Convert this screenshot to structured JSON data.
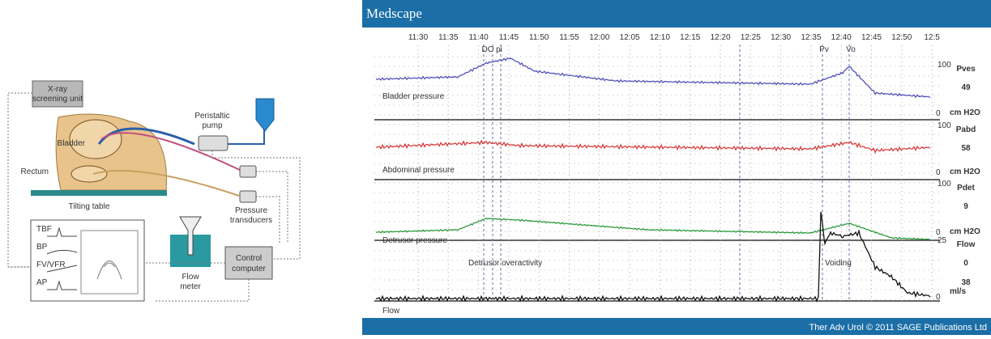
{
  "diagram": {
    "xray": [
      "X-ray",
      "screening unit"
    ],
    "pump": [
      "Peristaltic",
      "pump"
    ],
    "bladder": "Bladder",
    "rectum": "Rectum",
    "table": "Tilting table",
    "transducers": [
      "Pressure",
      "transducers"
    ],
    "flow_meter": [
      "Flow",
      "meter"
    ],
    "computer": [
      "Control",
      "computer"
    ],
    "monitor": [
      "TBF",
      "BP",
      "FV/VFR",
      "AP"
    ]
  },
  "trace": {
    "header": "Medscape",
    "times": [
      "11:30",
      "11:35",
      "11:40",
      "11:45",
      "11:50",
      "11:55",
      "12:00",
      "12:05",
      "12:10",
      "12:15",
      "12:20",
      "12:25",
      "12:30",
      "12:35",
      "12:40",
      "12:45",
      "12:50",
      "12:5"
    ],
    "events": [
      "DO",
      "pi",
      "Pv",
      "Vo"
    ],
    "channels": [
      {
        "label": "Bladder pressure",
        "max": "100",
        "name": "Pves",
        "value": "49",
        "zero": "0",
        "unit": "cm H2O"
      },
      {
        "label": "Abdominal pressure",
        "max": "100",
        "name": "Pabd",
        "value": "58",
        "zero": "0",
        "unit": "cm H2O"
      },
      {
        "label": "Detrusor pressure",
        "max": "100",
        "name": "Pdet",
        "value": "9",
        "zero": "0",
        "unit": "cm H2O"
      },
      {
        "label": "Flow",
        "max": "25",
        "name": "Flow",
        "value": "0",
        "value2": "38",
        "zero": "0",
        "unit": "ml/s"
      }
    ],
    "annotations": [
      "Detrusor overactivity",
      "Voiding"
    ],
    "footer": "Ther Adv Urol © 2011 SAGE Publications Ltd"
  }
}
